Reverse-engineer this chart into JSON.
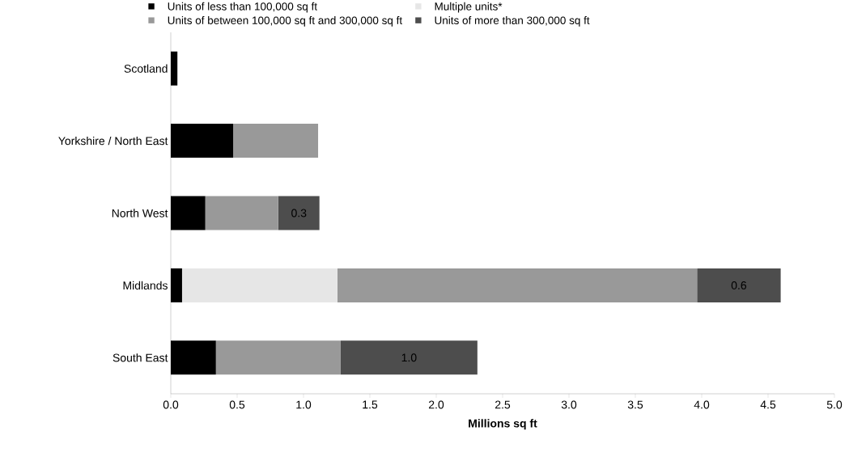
{
  "chart_data": {
    "type": "bar",
    "orientation": "horizontal",
    "stacked": true,
    "legend": "top",
    "grid": false,
    "xlabel": "**Millions sq ft**",
    "categories": [
      "Scotland",
      "Yorkshire / North East",
      "North West",
      "Midlands",
      "South East"
    ],
    "series": [
      {
        "name": "Units of less than 100,000 sq ft",
        "color": "#000000",
        "values": [
          0.05,
          0.47,
          0.26,
          0.085,
          0.34
        ]
      },
      {
        "name": "Multiple units*",
        "color": "#e6e6e6",
        "values": [
          null,
          null,
          null,
          1.17,
          null
        ]
      },
      {
        "name": "Units of between 100,000 sq ft and 300,000 sq ft",
        "color": "#999999",
        "values": [
          null,
          0.64,
          0.55,
          2.71,
          0.94
        ]
      },
      {
        "name": "Units of more than 300,000 sq ft",
        "color": "#4d4d4d",
        "values": [
          null,
          null,
          0.31,
          0.63,
          1.03
        ],
        "value_labels": [
          null,
          null,
          "0.3",
          "0.6",
          "1.0"
        ]
      }
    ],
    "xlim": [
      0,
      5
    ],
    "xticks": [
      {
        "value": 0,
        "label": "0.0"
      },
      {
        "value": 0.5,
        "label": "0.5"
      },
      {
        "value": 1,
        "label": "1.0"
      },
      {
        "value": 1.5,
        "label": "1.5"
      },
      {
        "value": 2,
        "label": "2.0"
      },
      {
        "value": 2.5,
        "label": "2.5"
      },
      {
        "value": 3,
        "label": "3.0"
      },
      {
        "value": 3.5,
        "label": "3.5"
      },
      {
        "value": 4,
        "label": "4.0"
      },
      {
        "value": 4.5,
        "label": "4.5"
      },
      {
        "value": 5,
        "label": "5.0"
      }
    ]
  }
}
